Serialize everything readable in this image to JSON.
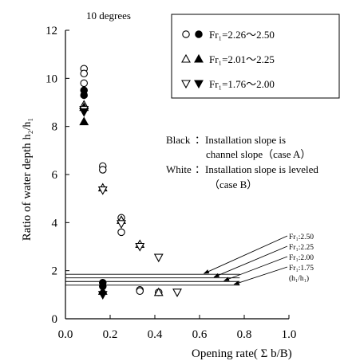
{
  "chart_data": {
    "type": "scatter",
    "title": "10 degrees",
    "xlabel": "Opening rate( Σ b/B)",
    "ylabel": "Ratio of water depth",
    "ylabel_ratio": "h₂/h₁",
    "xlim": [
      0,
      1.0
    ],
    "ylim": [
      0,
      12
    ],
    "xticks": [
      "0.0",
      "0.2",
      "0.4",
      "0.6",
      "0.8",
      "1.0"
    ],
    "yticks": [
      "0",
      "2",
      "4",
      "6",
      "8",
      "10",
      "12"
    ],
    "grid": false,
    "legend_position": "top-right",
    "series": [
      {
        "name": "Fr₁=2.26～2.50",
        "marker": "circle",
        "case": "B",
        "filled": false,
        "points": [
          [
            0.083,
            10.4
          ],
          [
            0.083,
            10.2
          ],
          [
            0.083,
            9.8
          ],
          [
            0.167,
            6.35
          ],
          [
            0.167,
            6.2
          ],
          [
            0.25,
            4.2
          ],
          [
            0.25,
            3.6
          ],
          [
            0.333,
            1.2
          ],
          [
            0.333,
            1.15
          ],
          [
            0.417,
            1.1
          ]
        ]
      },
      {
        "name": "Fr₁=2.26～2.50",
        "marker": "circle",
        "case": "A",
        "filled": true,
        "points": [
          [
            0.083,
            9.5
          ],
          [
            0.083,
            9.3
          ],
          [
            0.167,
            1.5
          ],
          [
            0.167,
            1.35
          ]
        ]
      },
      {
        "name": "Fr₁=2.01～2.25",
        "marker": "triangle-up",
        "case": "B",
        "filled": false,
        "points": [
          [
            0.083,
            8.9
          ],
          [
            0.167,
            5.45
          ],
          [
            0.25,
            4.1
          ],
          [
            0.333,
            3.1
          ],
          [
            0.417,
            1.1
          ]
        ]
      },
      {
        "name": "Fr₁=2.01～2.25",
        "marker": "triangle-up",
        "case": "A",
        "filled": true,
        "points": [
          [
            0.083,
            8.8
          ],
          [
            0.083,
            8.2
          ],
          [
            0.167,
            1.15
          ]
        ]
      },
      {
        "name": "Fr₁=1.76～2.00",
        "marker": "triangle-down",
        "case": "B",
        "filled": false,
        "points": [
          [
            0.083,
            8.7
          ],
          [
            0.167,
            5.35
          ],
          [
            0.25,
            3.95
          ],
          [
            0.333,
            3.0
          ],
          [
            0.417,
            2.55
          ],
          [
            0.5,
            1.1
          ]
        ]
      },
      {
        "name": "Fr₁=1.76～2.00",
        "marker": "triangle-down",
        "case": "A",
        "filled": true,
        "points": [
          [
            0.083,
            8.6
          ],
          [
            0.167,
            1.0
          ]
        ]
      }
    ],
    "reference_lines": [
      {
        "label": "Fr₁:2.50",
        "y": 1.85,
        "x_end": 0.78
      },
      {
        "label": "Fr₁:2.25",
        "y": 1.7,
        "x_end": 0.78
      },
      {
        "label": "Fr₁:2.00",
        "y": 1.55,
        "x_end": 0.78
      },
      {
        "label": "Fr₁:1.75",
        "y": 1.4,
        "x_end": 0.78
      }
    ],
    "reference_note": "(h₁/h₁)",
    "annotations": {
      "black_label": "Black",
      "black_text_1": "：Installation slope is",
      "black_text_2": "channel slope（case A）",
      "white_label": "White",
      "white_text_1": "：Installation slope is leveled",
      "white_text_2": "（case B）"
    }
  }
}
